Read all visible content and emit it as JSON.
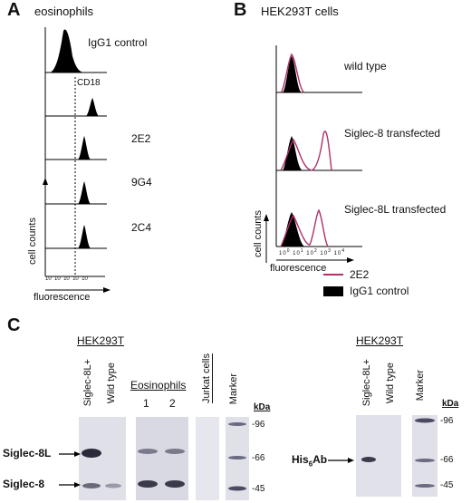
{
  "panelA": {
    "letter": "A",
    "title": "eosinophils",
    "histograms": [
      "IgG1 control",
      "CD18",
      "2E2",
      "9G4",
      "2C4"
    ],
    "ylabel": "cell counts",
    "xlabel": "fluorescence",
    "ticks": [
      "10",
      "10",
      "10",
      "10",
      "10"
    ]
  },
  "panelB": {
    "letter": "B",
    "title": "HEK293T cells",
    "histograms": [
      "wild type",
      "Siglec-8 transfected",
      "Siglec-8L transfected"
    ],
    "ylabel": "cell counts",
    "xlabel": "fluorescence",
    "tick_exponents": [
      "0",
      "1",
      "2",
      "3",
      "4"
    ],
    "legend": [
      {
        "label": "2E2",
        "color": "#b0306a",
        "style": "line"
      },
      {
        "label": "IgG1 control",
        "color": "#000000",
        "style": "filled"
      }
    ]
  },
  "panelC": {
    "letter": "C",
    "left_blot": {
      "group_hek": "HEK293T",
      "lane_siglec8l": "Siglec-8L+",
      "lane_wildtype": "Wild type",
      "group_eos": "Eosinophils",
      "eos_lane1": "1",
      "eos_lane2": "2",
      "jurkat": "Jurkat cells",
      "marker": "Marker",
      "kda": "kDa",
      "markers": [
        "-96",
        "-66",
        "-45"
      ],
      "band_labels": [
        "Siglec-8L",
        "Siglec-8"
      ]
    },
    "right_blot": {
      "group_hek": "HEK293T",
      "lane_siglec8l": "Siglec-8L+",
      "lane_wildtype": "Wild type",
      "marker": "Marker",
      "kda": "kDa",
      "markers": [
        "-96",
        "-66",
        "-45"
      ],
      "band_label_main": "His",
      "band_label_sub": "6",
      "band_label_tail": "Ab"
    }
  }
}
